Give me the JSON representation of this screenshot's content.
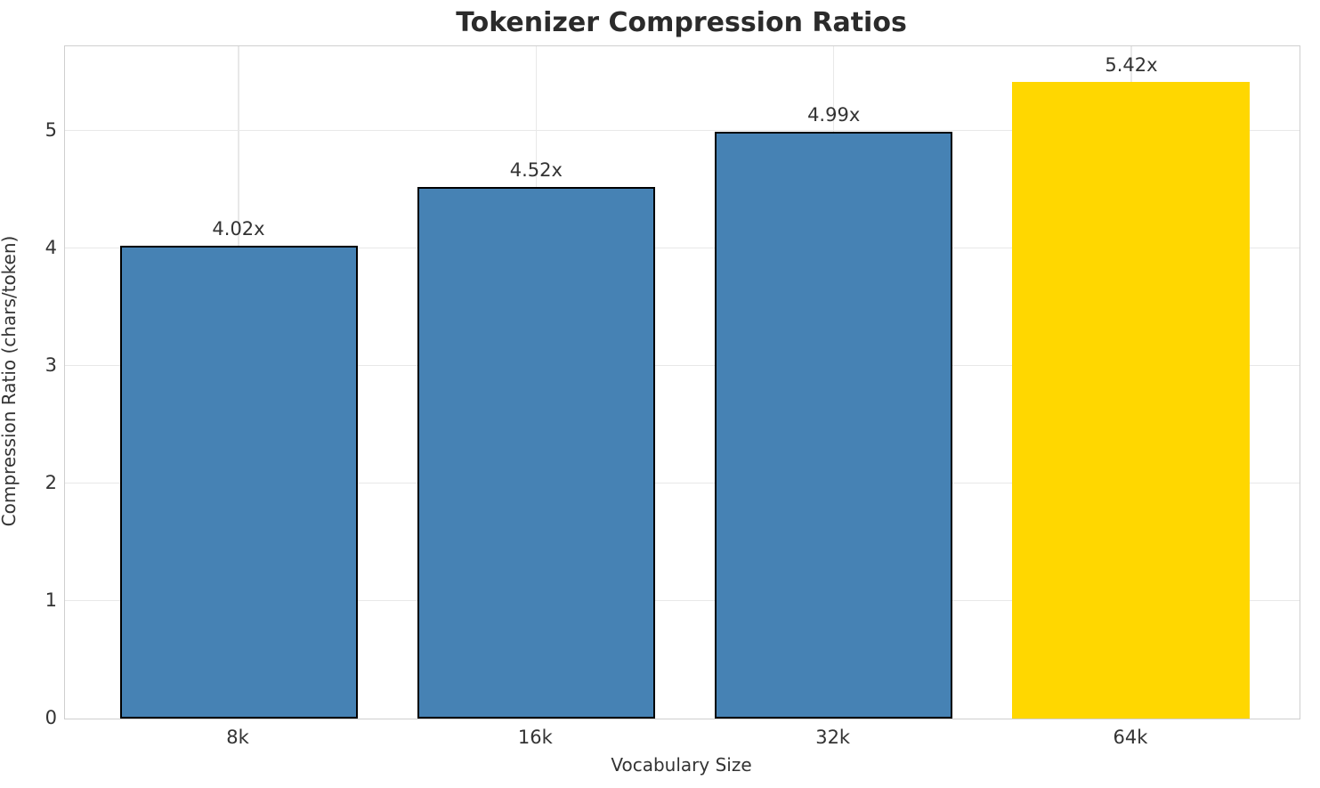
{
  "figure": {
    "title": "Tokenizer Compression Ratios",
    "xlabel": "Vocabulary Size",
    "ylabel": "Compression Ratio (chars/token)"
  },
  "chart_data": {
    "type": "bar",
    "title": "Tokenizer Compression Ratios",
    "xlabel": "Vocabulary Size",
    "ylabel": "Compression Ratio (chars/token)",
    "categories": [
      "8k",
      "16k",
      "32k",
      "64k"
    ],
    "values": [
      4.02,
      4.52,
      4.99,
      5.42
    ],
    "bar_labels": [
      "4.02x",
      "4.52x",
      "4.99x",
      "5.42x"
    ],
    "bar_colors": [
      "#4682B4",
      "#4682B4",
      "#4682B4",
      "#FFD700"
    ],
    "bar_edge_colors": [
      "#000000",
      "#000000",
      "#000000",
      "none"
    ],
    "yticks": [
      0,
      1,
      2,
      3,
      4,
      5
    ],
    "ylim": [
      0,
      5.72
    ],
    "grid": true,
    "legend_position": "none",
    "colors": {
      "default_bar": "#4682B4",
      "highlight_bar": "#FFD700",
      "bar_edge": "#000000",
      "grid": "#e8e8e8",
      "spine": "#cfcfcf",
      "text": "#333333",
      "title_text": "#2b2b2b",
      "background": "#ffffff"
    }
  }
}
